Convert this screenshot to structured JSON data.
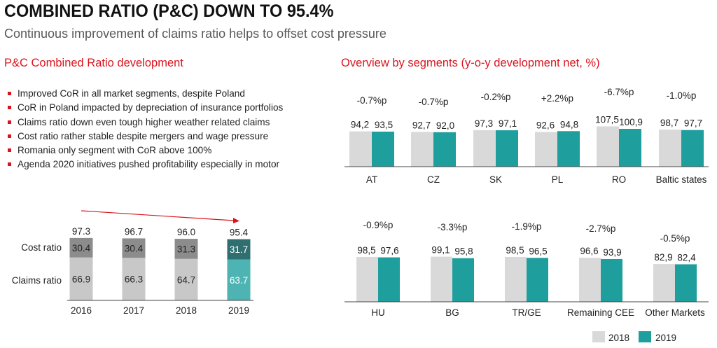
{
  "header": {
    "title": "COMBINED RATIO (P&C) DOWN TO 95.4%",
    "subtitle": "Continuous improvement of claims ratio helps to offset cost pressure"
  },
  "left_section_title": "P&C Combined Ratio development",
  "right_section_title": "Overview by segments (y-o-y development net, %)",
  "bullets": [
    "Improved CoR in all market segments, despite Poland",
    "CoR in Poland impacted by depreciation of insurance portfolios",
    "Claims ratio down even tough higher weather related claims",
    "Cost ratio rather stable despite mergers and wage pressure",
    "Romania only segment with CoR above 100%",
    "Agenda 2020 initiatives pushed profitability especially in motor"
  ],
  "colors": {
    "accent_red": "#d9141e",
    "bar_2018": "#d9d9d9",
    "bar_2019": "#1f9e9e",
    "cost_grey": "#8c8c8c",
    "claims_grey": "#c8c8c8",
    "cost_2019": "#2f6f6f",
    "claims_2019": "#4db3b3"
  },
  "legend": {
    "label_2018": "2018",
    "label_2019": "2019"
  },
  "chart_data": [
    {
      "type": "bar",
      "stacked": true,
      "categories": [
        "2016",
        "2017",
        "2018",
        "2019"
      ],
      "series": [
        {
          "name": "Claims ratio",
          "values": [
            66.9,
            66.3,
            64.7,
            63.7
          ]
        },
        {
          "name": "Cost ratio",
          "values": [
            30.4,
            30.4,
            31.3,
            31.7
          ]
        }
      ],
      "totals": [
        97.3,
        96.7,
        96.0,
        95.4
      ],
      "total_labels": [
        "97.3",
        "96.7",
        "96.0",
        "95.4"
      ],
      "claims_labels": [
        "66.9",
        "66.3",
        "64.7",
        "63.7"
      ],
      "cost_labels": [
        "30.4",
        "30.4",
        "31.3",
        "31.7"
      ],
      "annotation": "downward trend arrow"
    },
    {
      "type": "bar",
      "categories": [
        "AT",
        "CZ",
        "SK",
        "PL",
        "RO",
        "Baltic states"
      ],
      "series": [
        {
          "name": "2018",
          "values": [
            94.2,
            92.7,
            97.3,
            92.6,
            107.5,
            98.7
          ],
          "labels": [
            "94,2",
            "92,7",
            "97,3",
            "92,6",
            "107,5",
            "98,7"
          ]
        },
        {
          "name": "2019",
          "values": [
            93.5,
            92.0,
            97.1,
            94.8,
            100.9,
            97.7
          ],
          "labels": [
            "93,5",
            "92,0",
            "97,1",
            "94,8",
            "100,9",
            "97,7"
          ]
        }
      ],
      "changes": [
        "-0.7%p",
        "-0.7%p",
        "-0.2%p",
        "+2.2%p",
        "-6.7%p",
        "-1.0%p"
      ]
    },
    {
      "type": "bar",
      "categories": [
        "HU",
        "BG",
        "TR/GE",
        "Remaining CEE",
        "Other Markets"
      ],
      "series": [
        {
          "name": "2018",
          "values": [
            98.5,
            99.1,
            98.5,
            96.6,
            82.9
          ],
          "labels": [
            "98,5",
            "99,1",
            "98,5",
            "96,6",
            "82,9"
          ]
        },
        {
          "name": "2019",
          "values": [
            97.6,
            95.8,
            96.5,
            93.9,
            82.4
          ],
          "labels": [
            "97,6",
            "95,8",
            "96,5",
            "93,9",
            "82,4"
          ]
        }
      ],
      "changes": [
        "-0.9%p",
        "-3.3%p",
        "-1.9%p",
        "-2.7%p",
        "-0.5%p"
      ]
    }
  ]
}
